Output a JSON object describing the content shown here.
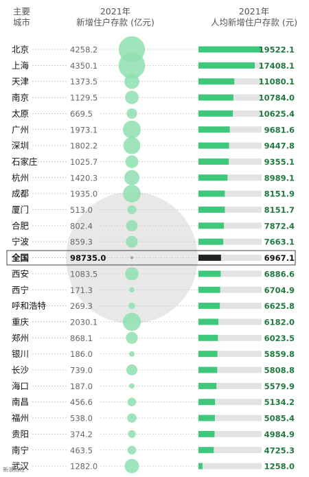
{
  "header": {
    "city_col_line1": "主要",
    "city_col_line2": "城市",
    "deposit_col_line1": "2021年",
    "deposit_col_line2": "新增住户存款 (亿元)",
    "percapita_col_line1": "2021年",
    "percapita_col_line2": "人均新增住户存款 (元)"
  },
  "watermark": "新浪财经",
  "colors": {
    "accent_green": "#3ec97a",
    "bubble_green": "#8fdfb0",
    "bar_track": "#e3e3e3",
    "national_dark": "#222222",
    "national_bubble": "#e6e6e6",
    "value_text": "#1f7a3f"
  },
  "chart_data": {
    "type": "bar",
    "xlabel": "",
    "ylabel": "",
    "categories": [
      "北京",
      "上海",
      "天津",
      "南京",
      "太原",
      "广州",
      "深圳",
      "石家庄",
      "杭州",
      "成都",
      "厦门",
      "合肥",
      "宁波",
      "全国",
      "西安",
      "西宁",
      "呼和浩特",
      "重庆",
      "郑州",
      "银川",
      "长沙",
      "海口",
      "南昌",
      "福州",
      "贵阳",
      "南宁",
      "武汉"
    ],
    "series": [
      {
        "values": [
          4258.2,
          4350.1,
          1373.5,
          1129.5,
          669.5,
          1973.1,
          1802.2,
          1025.7,
          1420.3,
          1935.0,
          513.0,
          802.4,
          859.3,
          98735.0,
          1083.5,
          171.3,
          269.3,
          2030.1,
          868.1,
          186.0,
          739.0,
          187.0,
          456.6,
          538.0,
          374.2,
          463.5,
          1282.0
        ]
      },
      {
        "values": [
          19522.1,
          17408.1,
          11080.1,
          10784.0,
          10625.4,
          9681.6,
          9447.8,
          9355.1,
          8989.1,
          8151.9,
          8151.7,
          7872.4,
          7663.1,
          6967.1,
          6886.6,
          6704.9,
          6625.8,
          6182.0,
          6023.5,
          5859.8,
          5808.8,
          5579.9,
          5134.2,
          5085.4,
          4984.9,
          4725.3,
          1258.0
        ]
      }
    ],
    "deposit_labels": [
      "4258.2",
      "4350.1",
      "1373.5",
      "1129.5",
      "669.5",
      "1973.1",
      "1802.2",
      "1025.7",
      "1420.3",
      "1935.0",
      "513.0",
      "802.4",
      "859.3",
      "98735.0",
      "1083.5",
      "171.3",
      "269.3",
      "2030.1",
      "868.1",
      "186.0",
      "739.0",
      "187.0",
      "456.6",
      "538.0",
      "374.2",
      "463.5",
      "1282.0"
    ],
    "percapita_labels": [
      "19522.1",
      "17408.1",
      "11080.1",
      "10784.0",
      "10625.4",
      "9681.6",
      "9447.8",
      "9355.1",
      "8989.1",
      "8151.9",
      "8151.7",
      "7872.4",
      "7663.1",
      "6967.1",
      "6886.6",
      "6704.9",
      "6625.8",
      "6182.0",
      "6023.5",
      "5859.8",
      "5808.8",
      "5579.9",
      "5134.2",
      "5085.4",
      "4984.9",
      "4725.3",
      "1258.0"
    ],
    "highlight_category": "全国",
    "percapita_max": 19522.1
  }
}
